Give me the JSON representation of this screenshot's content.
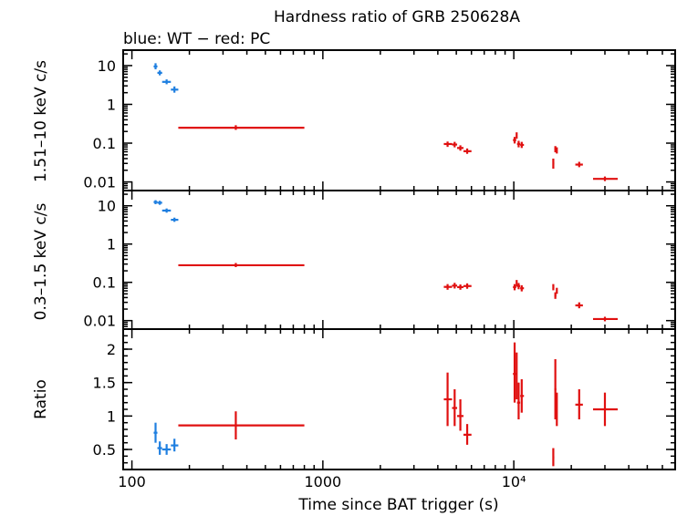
{
  "title": "Hardness ratio of GRB 250628A",
  "subtitle": "blue: WT − red: PC",
  "colors": {
    "wt": "#1f7fe0",
    "pc": "#e01010",
    "axis": "#000000"
  },
  "chart_data": {
    "type": "scatter",
    "xscale": "log",
    "xlim": [
      90,
      70000
    ],
    "xlabel": "Time since BAT trigger (s)",
    "xticks": [
      {
        "value": 100,
        "label": "100"
      },
      {
        "value": 1000,
        "label": "1000"
      },
      {
        "value": 10000,
        "label": "10⁴"
      }
    ],
    "panels": [
      {
        "id": "hard",
        "ylabel": "1.51–10 keV c/s",
        "yscale": "log",
        "ylim": [
          0.006,
          25
        ],
        "yticks": [
          {
            "value": 10,
            "label": "10"
          },
          {
            "value": 1,
            "label": "1"
          },
          {
            "value": 0.1,
            "label": "0.1"
          },
          {
            "value": 0.01,
            "label": "0.01"
          }
        ],
        "series": [
          {
            "name": "WT",
            "color": "#1f7fe0",
            "points": [
              {
                "x": 133,
                "xlo": 130,
                "xhi": 136,
                "y": 9.5,
                "ylo": 8.0,
                "yhi": 11.5
              },
              {
                "x": 140,
                "xlo": 136,
                "xhi": 144,
                "y": 6.5,
                "ylo": 5.6,
                "yhi": 7.5
              },
              {
                "x": 152,
                "xlo": 144,
                "xhi": 160,
                "y": 3.8,
                "ylo": 3.3,
                "yhi": 4.4
              },
              {
                "x": 167,
                "xlo": 160,
                "xhi": 175,
                "y": 2.4,
                "ylo": 2.0,
                "yhi": 2.9
              }
            ]
          },
          {
            "name": "PC",
            "color": "#e01010",
            "points": [
              {
                "x": 350,
                "xlo": 175,
                "xhi": 800,
                "y": 0.25,
                "ylo": 0.22,
                "yhi": 0.29
              },
              {
                "x": 4500,
                "xlo": 4300,
                "xhi": 4750,
                "y": 0.095,
                "ylo": 0.08,
                "yhi": 0.11
              },
              {
                "x": 4900,
                "xlo": 4750,
                "xhi": 5050,
                "y": 0.092,
                "ylo": 0.078,
                "yhi": 0.108
              },
              {
                "x": 5250,
                "xlo": 5050,
                "xhi": 5450,
                "y": 0.075,
                "ylo": 0.064,
                "yhi": 0.088
              },
              {
                "x": 5700,
                "xlo": 5450,
                "xhi": 6000,
                "y": 0.062,
                "ylo": 0.053,
                "yhi": 0.073
              },
              {
                "x": 10100,
                "xlo": 9900,
                "xhi": 10300,
                "y": 0.12,
                "ylo": 0.098,
                "yhi": 0.145
              },
              {
                "x": 10350,
                "xlo": 10300,
                "xhi": 10400,
                "y": 0.16,
                "ylo": 0.13,
                "yhi": 0.19
              },
              {
                "x": 10600,
                "xlo": 10400,
                "xhi": 10800,
                "y": 0.095,
                "ylo": 0.078,
                "yhi": 0.115
              },
              {
                "x": 11000,
                "xlo": 10800,
                "xhi": 11300,
                "y": 0.09,
                "ylo": 0.075,
                "yhi": 0.108
              },
              {
                "x": 16100,
                "xlo": 16000,
                "xhi": 16300,
                "y": 0.03,
                "ylo": 0.022,
                "yhi": 0.04
              },
              {
                "x": 16500,
                "xlo": 16300,
                "xhi": 16700,
                "y": 0.07,
                "ylo": 0.058,
                "yhi": 0.084
              },
              {
                "x": 16800,
                "xlo": 16700,
                "xhi": 16900,
                "y": 0.065,
                "ylo": 0.054,
                "yhi": 0.078
              },
              {
                "x": 22000,
                "xlo": 21000,
                "xhi": 23000,
                "y": 0.028,
                "ylo": 0.024,
                "yhi": 0.033
              },
              {
                "x": 30000,
                "xlo": 26000,
                "xhi": 35000,
                "y": 0.012,
                "ylo": 0.0105,
                "yhi": 0.0138
              }
            ]
          }
        ]
      },
      {
        "id": "soft",
        "ylabel": "0.3–1.5 keV c/s",
        "yscale": "log",
        "ylim": [
          0.006,
          25
        ],
        "yticks": [
          {
            "value": 10,
            "label": "10"
          },
          {
            "value": 1,
            "label": "1"
          },
          {
            "value": 0.1,
            "label": "0.1"
          },
          {
            "value": 0.01,
            "label": "0.01"
          }
        ],
        "series": [
          {
            "name": "WT",
            "color": "#1f7fe0",
            "points": [
              {
                "x": 133,
                "xlo": 130,
                "xhi": 136,
                "y": 12.5,
                "ylo": 11.0,
                "yhi": 14.0
              },
              {
                "x": 140,
                "xlo": 136,
                "xhi": 144,
                "y": 12.0,
                "ylo": 10.6,
                "yhi": 13.5
              },
              {
                "x": 152,
                "xlo": 144,
                "xhi": 160,
                "y": 7.5,
                "ylo": 6.6,
                "yhi": 8.5
              },
              {
                "x": 167,
                "xlo": 160,
                "xhi": 175,
                "y": 4.3,
                "ylo": 3.8,
                "yhi": 4.9
              }
            ]
          },
          {
            "name": "PC",
            "color": "#e01010",
            "points": [
              {
                "x": 350,
                "xlo": 175,
                "xhi": 800,
                "y": 0.28,
                "ylo": 0.25,
                "yhi": 0.32
              },
              {
                "x": 4500,
                "xlo": 4300,
                "xhi": 4750,
                "y": 0.076,
                "ylo": 0.064,
                "yhi": 0.09
              },
              {
                "x": 4900,
                "xlo": 4750,
                "xhi": 5050,
                "y": 0.082,
                "ylo": 0.069,
                "yhi": 0.097
              },
              {
                "x": 5250,
                "xlo": 5050,
                "xhi": 5450,
                "y": 0.075,
                "ylo": 0.064,
                "yhi": 0.088
              },
              {
                "x": 5700,
                "xlo": 5450,
                "xhi": 6000,
                "y": 0.08,
                "ylo": 0.068,
                "yhi": 0.094
              },
              {
                "x": 10100,
                "xlo": 9900,
                "xhi": 10300,
                "y": 0.075,
                "ylo": 0.062,
                "yhi": 0.09
              },
              {
                "x": 10350,
                "xlo": 10300,
                "xhi": 10400,
                "y": 0.095,
                "ylo": 0.078,
                "yhi": 0.115
              },
              {
                "x": 10600,
                "xlo": 10400,
                "xhi": 10800,
                "y": 0.08,
                "ylo": 0.066,
                "yhi": 0.096
              },
              {
                "x": 11000,
                "xlo": 10800,
                "xhi": 11300,
                "y": 0.07,
                "ylo": 0.058,
                "yhi": 0.084
              },
              {
                "x": 16100,
                "xlo": 16000,
                "xhi": 16300,
                "y": 0.075,
                "ylo": 0.062,
                "yhi": 0.09
              },
              {
                "x": 16500,
                "xlo": 16300,
                "xhi": 16700,
                "y": 0.045,
                "ylo": 0.037,
                "yhi": 0.055
              },
              {
                "x": 16800,
                "xlo": 16700,
                "xhi": 16900,
                "y": 0.06,
                "ylo": 0.05,
                "yhi": 0.072
              },
              {
                "x": 22000,
                "xlo": 21000,
                "xhi": 23000,
                "y": 0.025,
                "ylo": 0.021,
                "yhi": 0.03
              },
              {
                "x": 30000,
                "xlo": 26000,
                "xhi": 35000,
                "y": 0.011,
                "ylo": 0.0096,
                "yhi": 0.0126
              }
            ]
          }
        ]
      },
      {
        "id": "ratio",
        "ylabel": "Ratio",
        "yscale": "linear",
        "ylim": [
          0.2,
          2.3
        ],
        "yticks": [
          {
            "value": 2,
            "label": "2"
          },
          {
            "value": 1.5,
            "label": "1.5"
          },
          {
            "value": 1,
            "label": "1"
          },
          {
            "value": 0.5,
            "label": "0.5"
          }
        ],
        "minor_step": 0.1,
        "series": [
          {
            "name": "WT",
            "color": "#1f7fe0",
            "points": [
              {
                "x": 133,
                "xlo": 130,
                "xhi": 136,
                "y": 0.75,
                "ylo": 0.6,
                "yhi": 0.9
              },
              {
                "x": 140,
                "xlo": 136,
                "xhi": 144,
                "y": 0.52,
                "ylo": 0.42,
                "yhi": 0.62
              },
              {
                "x": 152,
                "xlo": 144,
                "xhi": 160,
                "y": 0.5,
                "ylo": 0.42,
                "yhi": 0.58
              },
              {
                "x": 167,
                "xlo": 160,
                "xhi": 175,
                "y": 0.56,
                "ylo": 0.47,
                "yhi": 0.66
              }
            ]
          },
          {
            "name": "PC",
            "color": "#e01010",
            "points": [
              {
                "x": 350,
                "xlo": 175,
                "xhi": 800,
                "y": 0.86,
                "ylo": 0.65,
                "yhi": 1.07
              },
              {
                "x": 4500,
                "xlo": 4300,
                "xhi": 4750,
                "y": 1.25,
                "ylo": 0.85,
                "yhi": 1.65
              },
              {
                "x": 4900,
                "xlo": 4750,
                "xhi": 5050,
                "y": 1.12,
                "ylo": 0.85,
                "yhi": 1.4
              },
              {
                "x": 5250,
                "xlo": 5050,
                "xhi": 5450,
                "y": 1.0,
                "ylo": 0.78,
                "yhi": 1.25
              },
              {
                "x": 5700,
                "xlo": 5450,
                "xhi": 6000,
                "y": 0.72,
                "ylo": 0.57,
                "yhi": 0.88
              },
              {
                "x": 10100,
                "xlo": 9900,
                "xhi": 10300,
                "y": 1.63,
                "ylo": 1.2,
                "yhi": 2.1
              },
              {
                "x": 10350,
                "xlo": 10300,
                "xhi": 10400,
                "y": 1.6,
                "ylo": 1.25,
                "yhi": 1.95
              },
              {
                "x": 10600,
                "xlo": 10400,
                "xhi": 10800,
                "y": 1.2,
                "ylo": 0.95,
                "yhi": 1.5
              },
              {
                "x": 11000,
                "xlo": 10800,
                "xhi": 11300,
                "y": 1.3,
                "ylo": 1.05,
                "yhi": 1.55
              },
              {
                "x": 16100,
                "xlo": 16000,
                "xhi": 16300,
                "y": 0.38,
                "ylo": 0.25,
                "yhi": 0.52
              },
              {
                "x": 16500,
                "xlo": 16300,
                "xhi": 16700,
                "y": 1.4,
                "ylo": 0.95,
                "yhi": 1.85
              },
              {
                "x": 16800,
                "xlo": 16700,
                "xhi": 16900,
                "y": 1.1,
                "ylo": 0.85,
                "yhi": 1.35
              },
              {
                "x": 22000,
                "xlo": 21000,
                "xhi": 23000,
                "y": 1.17,
                "ylo": 0.95,
                "yhi": 1.4
              },
              {
                "x": 30000,
                "xlo": 26000,
                "xhi": 35000,
                "y": 1.1,
                "ylo": 0.85,
                "yhi": 1.35
              }
            ]
          }
        ]
      }
    ]
  }
}
